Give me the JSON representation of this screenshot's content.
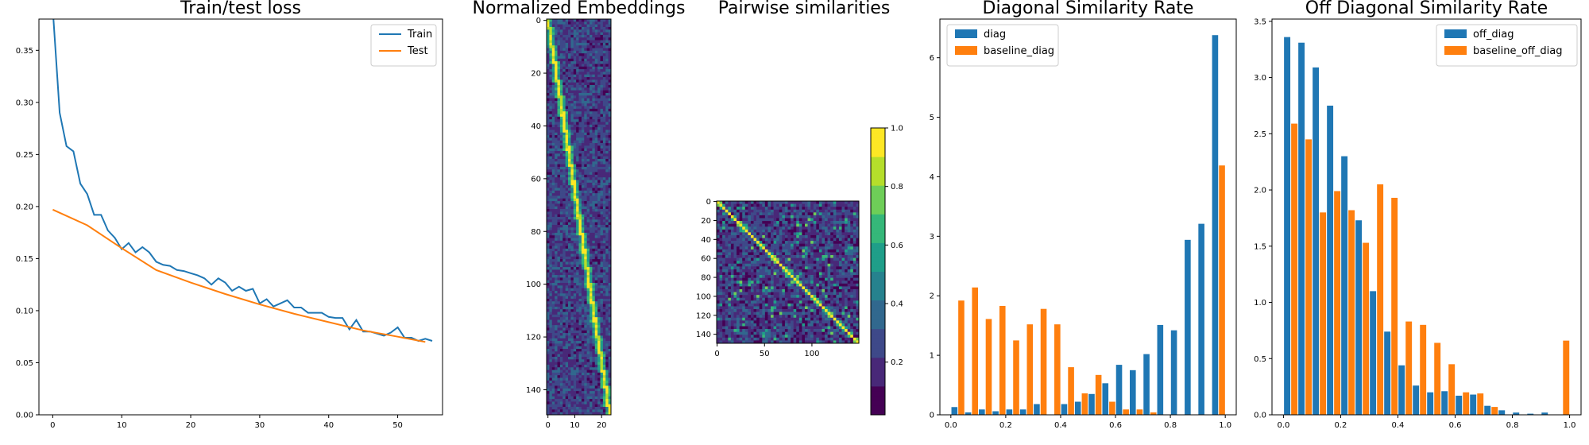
{
  "palette": {
    "blue": "#1f77b4",
    "orange": "#ff7f0e",
    "viridis": [
      "#440154",
      "#482878",
      "#3e4989",
      "#31688e",
      "#26828e",
      "#1f9e89",
      "#35b779",
      "#6ece58",
      "#b5de2b",
      "#fde725"
    ]
  },
  "chart_data": [
    {
      "type": "line",
      "title": "Train/test loss",
      "xlim": [
        -2,
        56.5
      ],
      "ylim": [
        0,
        0.38
      ],
      "xticks": [
        0,
        10,
        20,
        30,
        40,
        50
      ],
      "yticks": [
        0.0,
        0.05,
        0.1,
        0.15,
        0.2,
        0.25,
        0.3,
        0.35
      ],
      "ytick_labels": [
        "0.00",
        "0.05",
        "0.10",
        "0.15",
        "0.20",
        "0.25",
        "0.30",
        "0.35"
      ],
      "legend": "top-right",
      "series": [
        {
          "name": "Train",
          "color": "#1f77b4",
          "values": [
            0.39,
            0.29,
            0.258,
            0.253,
            0.222,
            0.212,
            0.192,
            0.192,
            0.177,
            0.17,
            0.159,
            0.165,
            0.156,
            0.161,
            0.156,
            0.147,
            0.144,
            0.143,
            0.139,
            0.138,
            0.136,
            0.134,
            0.131,
            0.125,
            0.131,
            0.127,
            0.119,
            0.123,
            0.119,
            0.121,
            0.107,
            0.111,
            0.104,
            0.107,
            0.11,
            0.103,
            0.103,
            0.098,
            0.098,
            0.098,
            0.094,
            0.093,
            0.093,
            0.082,
            0.091,
            0.08,
            0.08,
            0.078,
            0.076,
            0.079,
            0.084,
            0.074,
            0.074,
            0.071,
            0.073,
            0.071
          ]
        },
        {
          "name": "Test",
          "color": "#ff7f0e",
          "x": [
            0,
            5,
            10,
            15,
            20,
            25,
            30,
            35,
            40,
            45,
            50,
            54
          ],
          "values": [
            0.197,
            0.182,
            0.16,
            0.139,
            0.127,
            0.116,
            0.106,
            0.097,
            0.089,
            0.081,
            0.075,
            0.07
          ]
        }
      ]
    },
    {
      "type": "heatmap",
      "title": "Normalized Embeddings",
      "rows": 150,
      "cols": 24,
      "xticks": [
        0,
        10,
        20
      ],
      "yticks": [
        0,
        20,
        40,
        60,
        80,
        100,
        120,
        140
      ],
      "pattern": "diagonal band of high values from (row 0, col 0) to (row 149, col 23) over low random background"
    },
    {
      "type": "heatmap",
      "title": "Pairwise similarities",
      "rows": 150,
      "cols": 150,
      "xticks": [
        0,
        50,
        100
      ],
      "yticks": [
        0,
        20,
        40,
        60,
        80,
        100,
        120,
        140
      ],
      "colorbar_ticks": [
        0.2,
        0.4,
        0.6,
        0.8,
        1.0
      ],
      "colorbar_tick_labels": [
        "0.2",
        "0.4",
        "0.6",
        "0.8",
        "1.0"
      ],
      "pattern": "bright main diagonal (similarity 1.0) with scattered off-diagonal blocks"
    },
    {
      "type": "bar",
      "title": "Diagonal Similarity Rate",
      "xlim": [
        -0.04,
        1.04
      ],
      "ylim": [
        0,
        6.65
      ],
      "xticks": [
        0.0,
        0.2,
        0.4,
        0.6,
        0.8,
        1.0
      ],
      "xtick_labels": [
        "0.0",
        "0.2",
        "0.4",
        "0.6",
        "0.8",
        "1.0"
      ],
      "yticks": [
        0,
        1,
        2,
        3,
        4,
        5,
        6
      ],
      "legend": "top-left",
      "bin_edges": [
        0.0,
        0.04,
        0.08,
        0.12,
        0.16,
        0.2,
        0.24,
        0.28,
        0.32,
        0.36,
        0.4,
        0.44,
        0.48,
        0.52,
        0.56,
        0.6,
        0.64,
        0.68,
        0.72,
        0.76,
        0.8,
        0.84,
        0.88,
        0.92,
        0.96,
        1.0
      ],
      "series": [
        {
          "name": "diag",
          "color": "#1f77b4",
          "values": [
            0.13,
            0.04,
            0.09,
            0.06,
            0.09,
            0.09,
            0.18,
            0.0,
            0.18,
            0.22,
            0.35,
            0.53,
            0.84,
            0.75,
            1.02,
            1.51,
            1.42,
            2.94,
            3.21,
            6.38,
            0,
            0,
            0,
            0,
            0
          ]
        },
        {
          "name": "baseline_diag",
          "color": "#ff7f0e",
          "values": [
            1.92,
            2.14,
            1.61,
            1.83,
            1.25,
            1.52,
            1.78,
            1.52,
            0.8,
            0.36,
            0.67,
            0.22,
            0.09,
            0.09,
            0.04,
            0.0,
            0.0,
            0.0,
            0.0,
            4.19,
            0,
            0,
            0,
            0,
            0
          ]
        }
      ]
    },
    {
      "type": "bar",
      "title": "Off Diagonal Similarity Rate",
      "xlim": [
        -0.04,
        1.04
      ],
      "ylim": [
        0,
        3.52
      ],
      "xticks": [
        0.0,
        0.2,
        0.4,
        0.6,
        0.8,
        1.0
      ],
      "xtick_labels": [
        "0.0",
        "0.2",
        "0.4",
        "0.6",
        "0.8",
        "1.0"
      ],
      "yticks": [
        0.0,
        0.5,
        1.0,
        1.5,
        2.0,
        2.5,
        3.0,
        3.5
      ],
      "ytick_labels": [
        "0.0",
        "0.5",
        "1.0",
        "1.5",
        "2.0",
        "2.5",
        "3.0",
        "3.5"
      ],
      "legend": "top-right",
      "series": [
        {
          "name": "off_diag",
          "color": "#1f77b4",
          "values": [
            3.36,
            3.31,
            3.09,
            2.75,
            2.3,
            1.73,
            1.1,
            0.74,
            0.44,
            0.26,
            0.2,
            0.21,
            0.17,
            0.18,
            0.08,
            0.04,
            0.02,
            0.01,
            0.02,
            0.0
          ]
        },
        {
          "name": "baseline_off_diag",
          "color": "#ff7f0e",
          "values": [
            2.59,
            2.45,
            1.8,
            1.99,
            1.82,
            1.53,
            2.05,
            1.93,
            0.83,
            0.8,
            0.64,
            0.45,
            0.2,
            0.19,
            0.07,
            0.0,
            0.0,
            0.0,
            0.0,
            0.66
          ]
        }
      ]
    }
  ]
}
